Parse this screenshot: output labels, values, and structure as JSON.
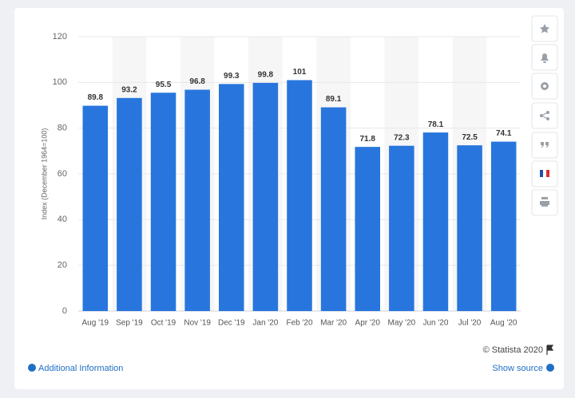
{
  "chart_data": {
    "type": "bar",
    "y_axis_label": "Index (December 1964=100)",
    "categories": [
      "Aug '19",
      "Sep '19",
      "Oct '19",
      "Nov '19",
      "Dec '19",
      "Jan '20",
      "Feb '20",
      "Mar '20",
      "Apr '20",
      "May '20",
      "Jun '20",
      "Jul '20",
      "Aug '20"
    ],
    "values": [
      89.8,
      93.2,
      95.5,
      96.8,
      99.3,
      99.8,
      101,
      89.1,
      71.8,
      72.3,
      78.1,
      72.5,
      74.1
    ],
    "color": "#2876dd",
    "ylim": [
      0,
      120
    ],
    "yticks": [
      0,
      20,
      40,
      60,
      80,
      100,
      120
    ],
    "grid": true
  },
  "footer": {
    "copyright": "© Statista 2020",
    "additional_info": "Additional Information",
    "show_source": "Show source"
  }
}
